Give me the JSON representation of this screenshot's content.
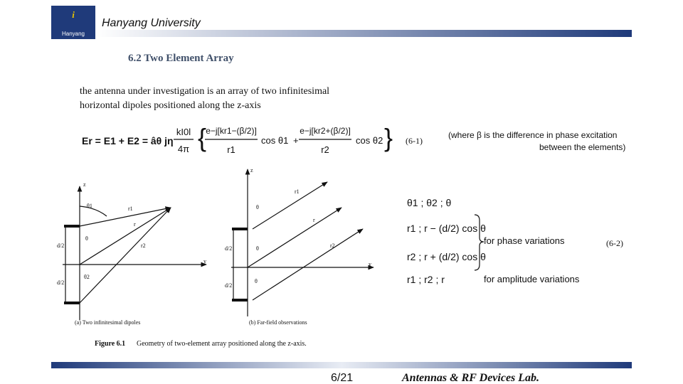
{
  "header": {
    "logo_text": "Hanyang",
    "university": "Hanyang University"
  },
  "title": "6.2 Two Element Array",
  "body": [
    "the antenna under investigation is an array of two infinitesimal",
    "horizontal dipoles positioned along the z-axis"
  ],
  "equation_1": {
    "lhs": "Er = E1 + E2 = âθ jη",
    "coef_num": "kI0l",
    "coef_den": "4π",
    "term1_num": "e−j[kr1−(β/2)]",
    "term1_den": "r1",
    "cos1": "cos θ1",
    "plus": "+",
    "term2_num": "e−j[kr2+(β/2)]",
    "term2_den": "r2",
    "cos2": "cos θ2",
    "label": "(6-1)",
    "note": [
      "(where β is the difference in phase excitation",
      "between the elements)"
    ]
  },
  "figure": {
    "left_labels": [
      "z",
      "θ1",
      "r1",
      "r",
      "θ",
      "r2",
      "θ2",
      "d/2",
      "d/2",
      "y"
    ],
    "right_labels": [
      "z",
      "r1",
      "θ",
      "r",
      "θ",
      "r2",
      "θ",
      "d/2",
      "d/2",
      "y"
    ],
    "sub_a": "(a)  Two infinitesimal dipoles",
    "sub_b": "(b)  Far-field observations",
    "caption_label": "Figure 6.1",
    "caption": "Geometry of two-element array positioned along the z-axis."
  },
  "equation_2": {
    "line1": "θ1 ; θ2 ; θ",
    "line2": "r1 ; r − (d/2) cos θ",
    "line3": "r2 ; r + (d/2) cos θ",
    "phase_note": "for phase variations",
    "line4": "r1 ; r2 ; r",
    "amplitude_note": "for amplitude variations",
    "label": "(6-2)"
  },
  "footer": {
    "page": "6/21",
    "lab": "Antennas & RF Devices Lab."
  }
}
